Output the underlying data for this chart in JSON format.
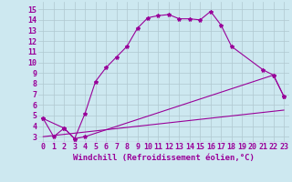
{
  "xlabel": "Windchill (Refroidissement éolien,°C)",
  "background_color": "#cde8f0",
  "line_color": "#990099",
  "xlim": [
    -0.5,
    23.5
  ],
  "ylim": [
    2.5,
    15.7
  ],
  "xticks": [
    0,
    1,
    2,
    3,
    4,
    5,
    6,
    7,
    8,
    9,
    10,
    11,
    12,
    13,
    14,
    15,
    16,
    17,
    18,
    19,
    20,
    21,
    22,
    23
  ],
  "yticks": [
    3,
    4,
    5,
    6,
    7,
    8,
    9,
    10,
    11,
    12,
    13,
    14,
    15
  ],
  "line1_x": [
    0,
    1,
    2,
    3,
    4,
    5,
    6,
    7,
    8,
    9,
    10,
    11,
    12,
    13,
    14,
    15,
    16,
    17,
    18,
    21,
    22,
    23
  ],
  "line1_y": [
    4.7,
    3.0,
    3.8,
    2.8,
    5.2,
    8.2,
    9.5,
    10.5,
    11.5,
    13.2,
    14.2,
    14.4,
    14.5,
    14.1,
    14.1,
    14.0,
    14.8,
    13.5,
    11.5,
    9.3,
    8.8,
    6.8
  ],
  "line2_x": [
    0,
    2,
    3,
    4,
    22,
    23
  ],
  "line2_y": [
    4.7,
    3.8,
    2.8,
    3.0,
    8.8,
    6.8
  ],
  "line3_x": [
    0,
    23
  ],
  "line3_y": [
    3.0,
    5.5
  ],
  "grid_color": "#b0c8d0",
  "xlabel_fontsize": 6.5,
  "tick_fontsize": 6.0
}
